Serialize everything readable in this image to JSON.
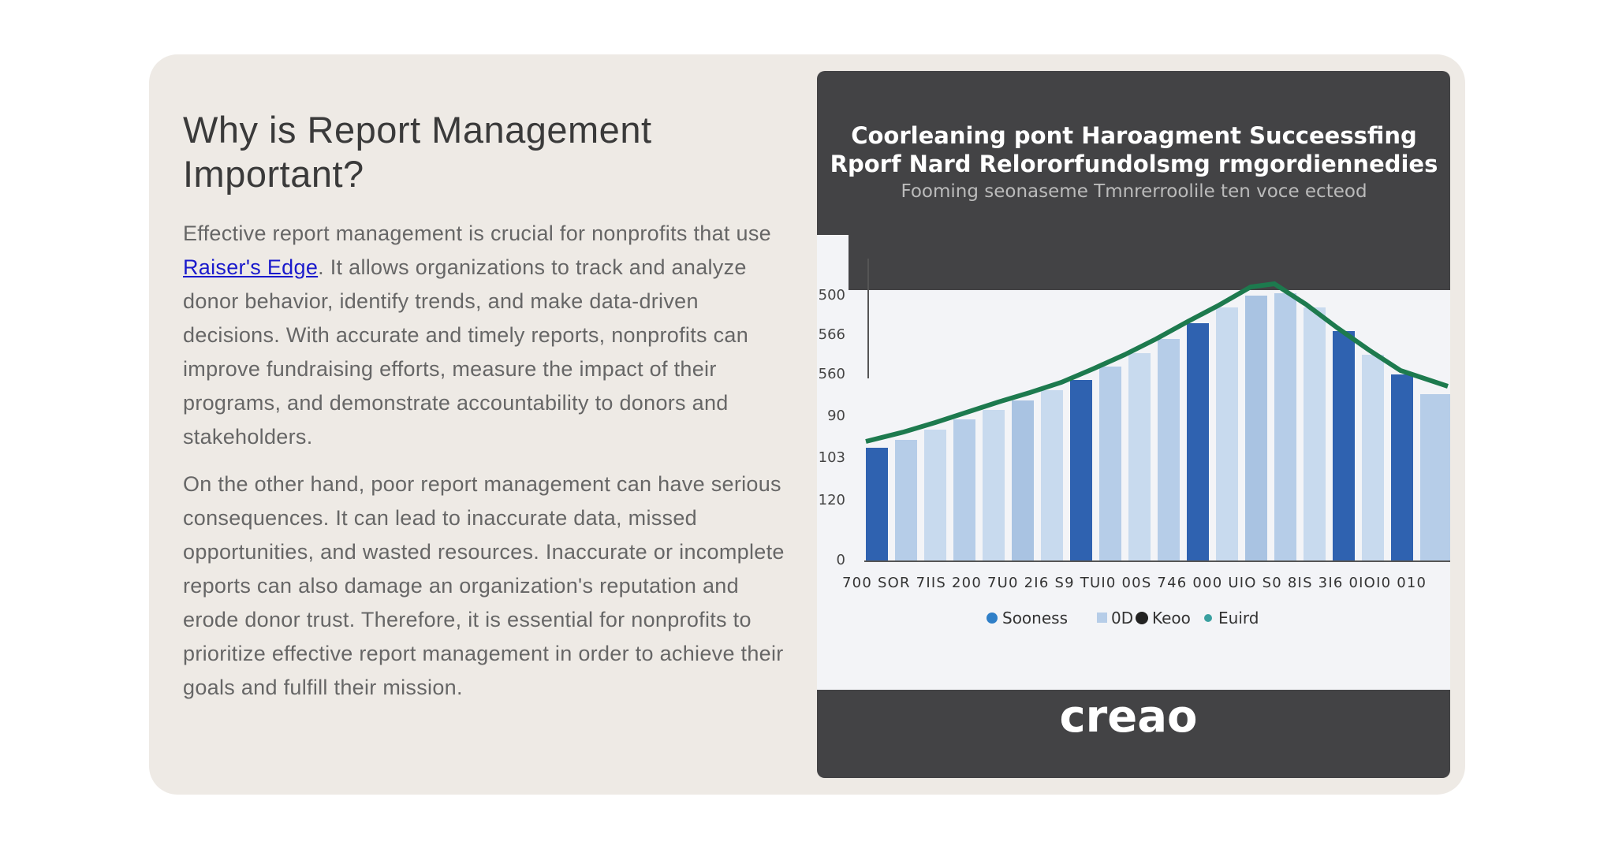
{
  "article": {
    "heading": "Why is Report Management Important?",
    "paragraphs": [
      {
        "before": "Effective report management is crucial for nonprofits that use ",
        "link": "Raiser's Edge",
        "after": ". It allows organizations to track and analyze donor behavior, identify trends, and make data-driven decisions. With accurate and timely reports, nonprofits can improve fundraising efforts, measure the impact of their programs, and demonstrate accountability to donors and stakeholders."
      },
      {
        "text": "On the other hand, poor report management can have serious consequences. It can lead to inaccurate data, missed opportunities, and wasted resources. Inaccurate or incomplete reports can also damage an organization's reputation and erode donor trust. Therefore, it is essential for nonprofits to prioritize effective report management in order to achieve their goals and fulfill their mission."
      }
    ]
  },
  "image": {
    "title_lines": [
      "Coorleaning pont Haroagment Succeessfing",
      "Rporf Nard Relororfundolsmg rmgordiennedies"
    ],
    "subtitle": "Fooming seonaseme Tmnrerroolile ten voce ecteod",
    "y_labels": [
      "500",
      "566",
      "560",
      "90",
      "103",
      "120",
      "0"
    ],
    "x_labels": "700 SOR 7IIS 200 7U0 2I6 S9 TUI0 00S 746 000 UIO S0 8IS 3I6 0IOI0 010",
    "legend": [
      "Sooness",
      "0D",
      "Keoo",
      "Euird"
    ],
    "logo": "creao"
  }
}
